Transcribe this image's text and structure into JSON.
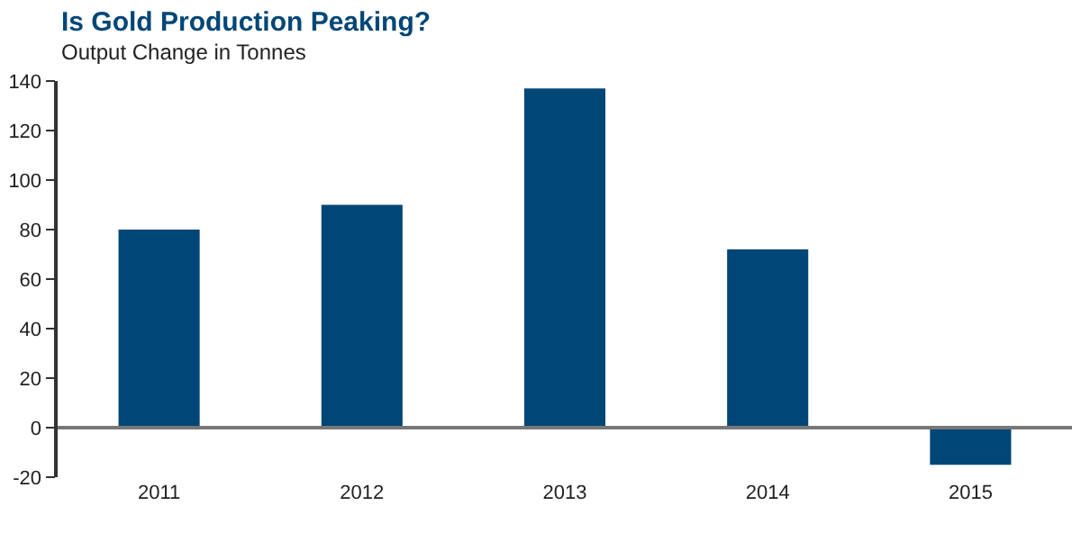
{
  "chart_data": {
    "type": "bar",
    "title": "Is Gold Production Peaking?",
    "subtitle": "Output Change in Tonnes",
    "categories": [
      "2011",
      "2012",
      "2013",
      "2014",
      "2015"
    ],
    "values": [
      80,
      90,
      137,
      72,
      -15
    ],
    "color": "#004677",
    "ylim": [
      -20,
      140
    ],
    "yticks": [
      -20,
      0,
      20,
      40,
      60,
      80,
      100,
      120,
      140
    ],
    "ref_lines": [
      {
        "axis": "y",
        "value": 0,
        "color": "#777777"
      }
    ]
  }
}
